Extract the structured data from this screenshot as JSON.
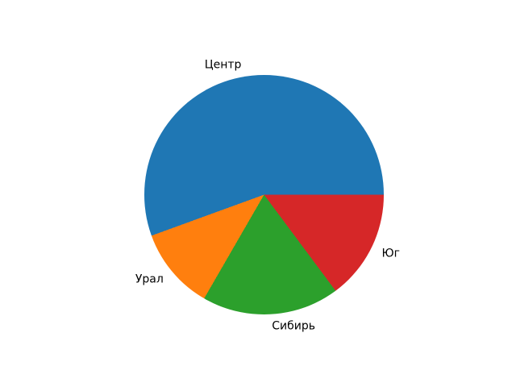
{
  "chart_data": {
    "type": "pie",
    "title": "",
    "labels": [
      "Центр",
      "Урал",
      "Сибирь",
      "Юг"
    ],
    "values": [
      30,
      6,
      10,
      8
    ],
    "percentages": [
      55.6,
      11.1,
      18.5,
      14.8
    ],
    "colors": [
      "#1f77b4",
      "#ff7f0e",
      "#2ca02c",
      "#d62728"
    ],
    "start_angle_deg": 0,
    "direction": "counterclockwise",
    "legend": false,
    "background": "#ffffff"
  }
}
